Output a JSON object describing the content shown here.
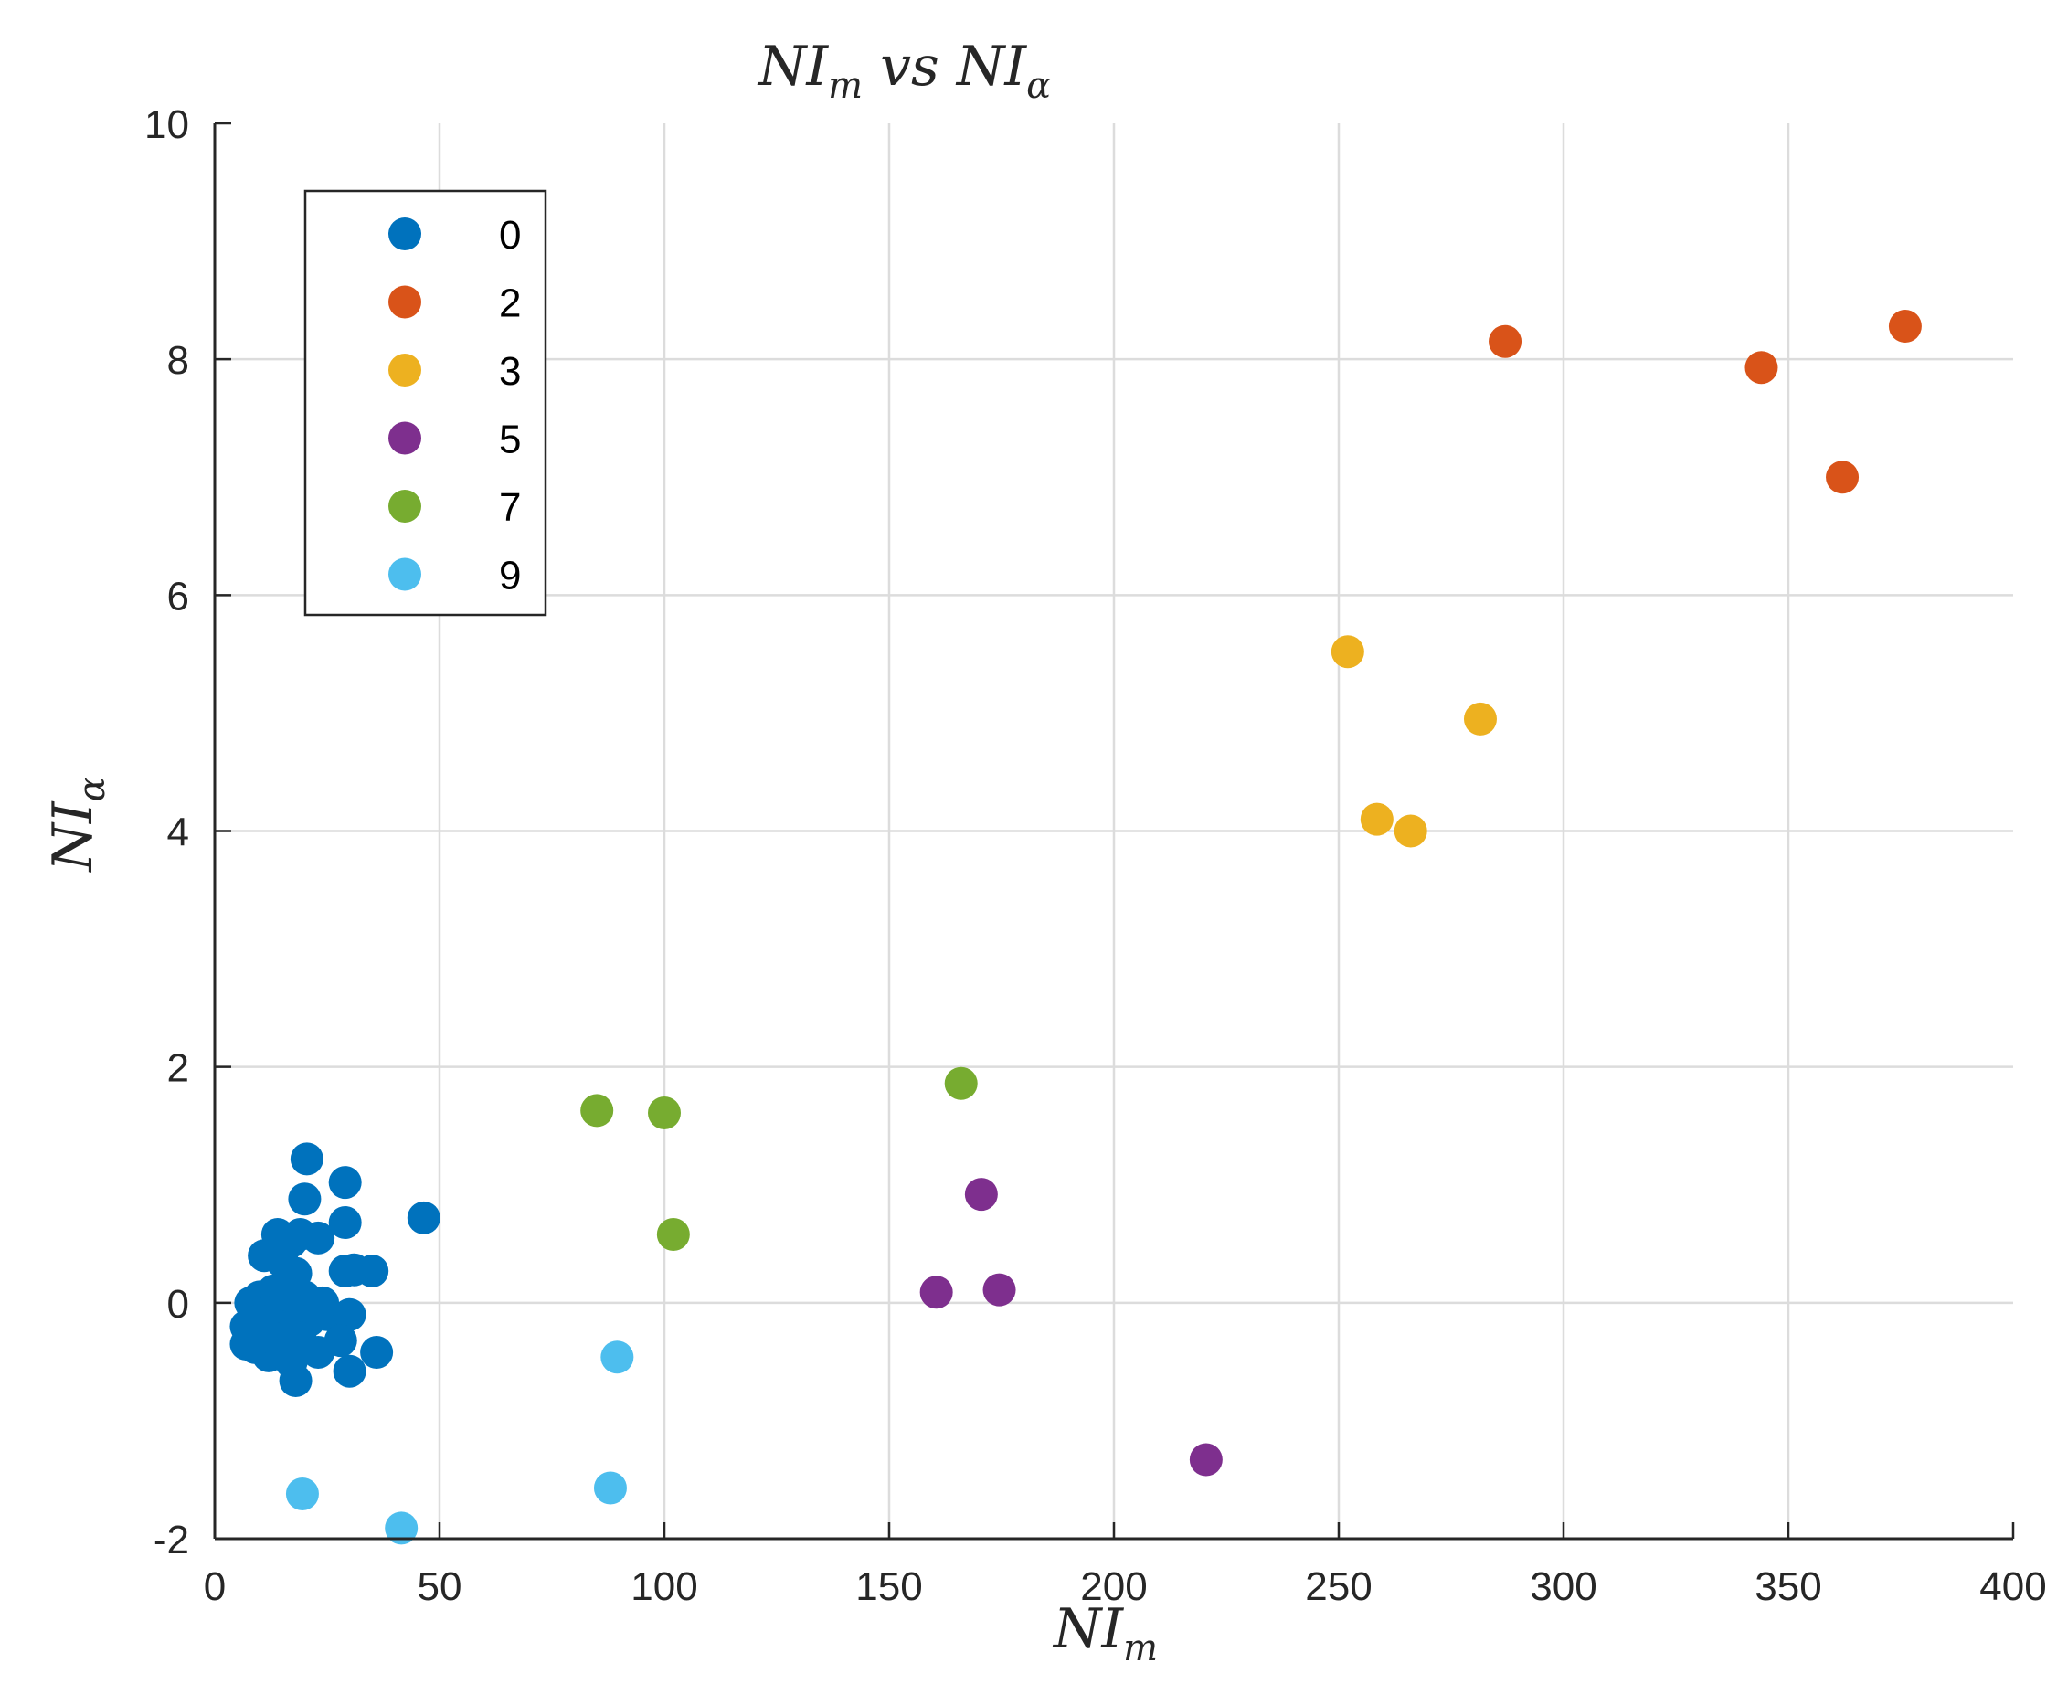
{
  "chart_data": {
    "type": "scatter",
    "title": {
      "main": "NI",
      "sub1": "m",
      "mid": " vs NI",
      "sub2": "α"
    },
    "xlabel": {
      "main": "NI",
      "sub": "m"
    },
    "ylabel": {
      "main": "NI",
      "sub": "α"
    },
    "xlim": [
      0,
      400
    ],
    "ylim": [
      -2,
      10
    ],
    "xticks": [
      0,
      50,
      100,
      150,
      200,
      250,
      300,
      350,
      400
    ],
    "yticks": [
      -2,
      0,
      2,
      4,
      6,
      8,
      10
    ],
    "xtick_labels": [
      "0",
      "50",
      "100",
      "150",
      "200",
      "250",
      "300",
      "350",
      "400"
    ],
    "ytick_labels": [
      "-2",
      "0",
      "2",
      "4",
      "6",
      "8",
      "10"
    ],
    "grid": true,
    "legend_position": "top-left",
    "series": [
      {
        "name": "0",
        "color": "#0072BD",
        "points": [
          [
            20.5,
            1.22
          ],
          [
            29,
            1.02
          ],
          [
            46.5,
            0.72
          ],
          [
            20,
            0.88
          ],
          [
            29,
            0.68
          ],
          [
            14,
            0.58
          ],
          [
            17,
            0.52
          ],
          [
            23,
            0.55
          ],
          [
            19,
            0.58
          ],
          [
            11,
            0.4
          ],
          [
            15,
            0.35
          ],
          [
            18,
            0.25
          ],
          [
            29,
            0.27
          ],
          [
            35,
            0.27
          ],
          [
            31,
            0.28
          ],
          [
            8,
            0.0
          ],
          [
            10,
            0.05
          ],
          [
            13,
            0.1
          ],
          [
            16,
            0.15
          ],
          [
            20,
            0.05
          ],
          [
            22,
            -0.02
          ],
          [
            17,
            -0.05
          ],
          [
            12,
            -0.08
          ],
          [
            9,
            -0.12
          ],
          [
            7,
            -0.2
          ],
          [
            11,
            -0.25
          ],
          [
            14,
            -0.2
          ],
          [
            18,
            -0.18
          ],
          [
            21,
            -0.15
          ],
          [
            25,
            -0.1
          ],
          [
            30,
            -0.1
          ],
          [
            7,
            -0.35
          ],
          [
            9,
            -0.38
          ],
          [
            12,
            -0.45
          ],
          [
            15,
            -0.42
          ],
          [
            19,
            -0.3
          ],
          [
            23,
            -0.42
          ],
          [
            28,
            -0.32
          ],
          [
            17,
            -0.5
          ],
          [
            36,
            -0.42
          ],
          [
            30,
            -0.58
          ],
          [
            18,
            -0.66
          ],
          [
            13,
            -0.3
          ],
          [
            10,
            -0.15
          ],
          [
            24,
            0.0
          ]
        ]
      },
      {
        "name": "2",
        "color": "#D95319",
        "points": [
          [
            287,
            8.15
          ],
          [
            344,
            7.93
          ],
          [
            376,
            8.28
          ],
          [
            362,
            7.0
          ]
        ]
      },
      {
        "name": "3",
        "color": "#EDB120",
        "points": [
          [
            252,
            5.52
          ],
          [
            281.5,
            4.95
          ],
          [
            258.5,
            4.1
          ],
          [
            266,
            4.0
          ]
        ]
      },
      {
        "name": "5",
        "color": "#7E2F8E",
        "points": [
          [
            170.5,
            0.92
          ],
          [
            160.5,
            0.09
          ],
          [
            174.5,
            0.11
          ],
          [
            220.5,
            -1.33
          ]
        ]
      },
      {
        "name": "7",
        "color": "#77AC30",
        "points": [
          [
            85,
            1.63
          ],
          [
            100,
            1.61
          ],
          [
            166,
            1.86
          ],
          [
            102,
            0.58
          ]
        ]
      },
      {
        "name": "9",
        "color": "#4DBEEE",
        "points": [
          [
            89.5,
            -0.46
          ],
          [
            19.5,
            -1.62
          ],
          [
            41.5,
            -1.91
          ],
          [
            88,
            -1.57
          ]
        ]
      }
    ]
  }
}
